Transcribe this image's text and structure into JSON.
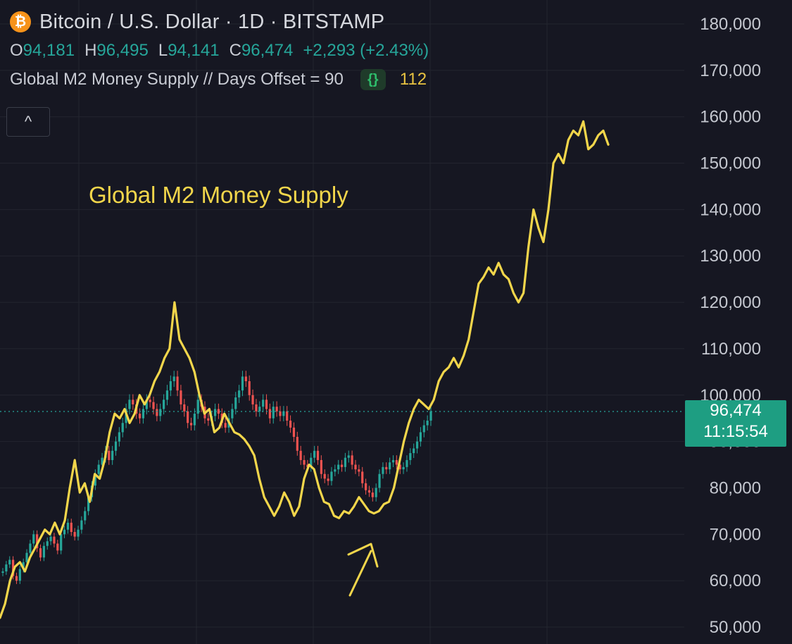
{
  "header": {
    "logo_symbol": "₿",
    "title": "Bitcoin / U.S. Dollar · 1D · BITSTAMP",
    "ohlc": {
      "o_label": "O",
      "o_value": "94,181",
      "h_label": "H",
      "h_value": "96,495",
      "l_label": "L",
      "l_value": "94,141",
      "c_label": "C",
      "c_value": "96,474",
      "change": "+2,293 (+2.43%)"
    },
    "indicator": {
      "name": "Global M2 Money Supply // Days Offset = 90",
      "icon": "braces-icon",
      "icon_glyph": "{}",
      "value": "112"
    },
    "collapse_glyph": "^"
  },
  "price_tag": {
    "price": "96,474",
    "countdown": "11:15:54"
  },
  "colors": {
    "background": "#161722",
    "grid": "#23252f",
    "bull": "#26a69a",
    "bear": "#ef5350",
    "m2_line": "#f2d64b",
    "price_tag": "#1e9e82"
  },
  "chart_data": {
    "type": "line",
    "y_axis": {
      "ticks": [
        "180,000",
        "170,000",
        "160,000",
        "150,000",
        "140,000",
        "130,000",
        "120,000",
        "110,000",
        "100,000",
        "90,000",
        "80,000",
        "70,000",
        "60,000",
        "50,000"
      ],
      "range": [
        48000,
        183000
      ],
      "side": "right"
    },
    "grid": true,
    "current_price": 96474,
    "annotation": "Global M2 Money Supply",
    "series": [
      {
        "kind": "candlestick",
        "note": "BTC/USD daily closes (approx.)",
        "values": [
          62000,
          63500,
          64500,
          61000,
          60000,
          62500,
          64000,
          66000,
          68000,
          70000,
          67000,
          65000,
          67500,
          68500,
          69500,
          68000,
          66500,
          70000,
          71000,
          72500,
          70500,
          69500,
          71000,
          73000,
          75000,
          78000,
          80500,
          83000,
          85000,
          86500,
          88000,
          86000,
          88000,
          90000,
          92000,
          94000,
          97000,
          99000,
          98000,
          96000,
          95000,
          97000,
          99000,
          98500,
          97000,
          95500,
          97000,
          99000,
          101000,
          103000,
          104000,
          101000,
          98000,
          96500,
          94000,
          93500,
          96000,
          99000,
          97500,
          95000,
          94500,
          95500,
          97000,
          96000,
          94000,
          93000,
          95000,
          97000,
          99500,
          101000,
          104000,
          103000,
          100000,
          98000,
          96500,
          97500,
          99000,
          97000,
          95000,
          97500,
          96500,
          95500,
          96500,
          94500,
          93000,
          91000,
          88000,
          86000,
          85000,
          84500,
          86500,
          88000,
          86000,
          83000,
          82000,
          81500,
          83500,
          84000,
          85000,
          84500,
          86500,
          87000,
          85000,
          84000,
          83500,
          81000,
          79500,
          79000,
          78000,
          80000,
          83000,
          84500,
          84000,
          85500,
          86000,
          85000,
          84000,
          84500,
          86000,
          87500,
          88500,
          90000,
          92000,
          93500,
          94500,
          96500
        ]
      },
      {
        "kind": "line",
        "name": "Global M2 Money Supply",
        "note": "M2 overlay in price-scale units (approx.)",
        "values": [
          52000,
          55000,
          60000,
          63000,
          64000,
          62000,
          65000,
          67000,
          69000,
          71000,
          70000,
          72500,
          70000,
          73000,
          80000,
          86000,
          79000,
          81000,
          77000,
          83000,
          82000,
          86000,
          92000,
          96000,
          95000,
          97000,
          94000,
          96000,
          100000,
          98000,
          100000,
          103000,
          105000,
          108000,
          110000,
          120000,
          112000,
          110000,
          108000,
          105000,
          100000,
          96000,
          97000,
          92000,
          93000,
          96000,
          94000,
          92000,
          91500,
          90500,
          89000,
          87000,
          82000,
          78000,
          76000,
          74000,
          76000,
          79000,
          77000,
          74000,
          76000,
          82000,
          85000,
          84000,
          80000,
          77000,
          76500,
          74000,
          73500,
          75000,
          74500,
          76000,
          78000,
          76500,
          75000,
          74500,
          75000,
          76500,
          77000,
          80000,
          85000,
          90000,
          94000,
          97000,
          99000,
          98000,
          97000,
          99000,
          103000,
          105000,
          106000,
          108000,
          106000,
          108500,
          112000,
          118000,
          124000,
          125500,
          127500,
          126000,
          128500,
          126000,
          125000,
          122000,
          120000,
          122000,
          132000,
          140000,
          136000,
          133000,
          140000,
          150000,
          152000,
          150000,
          155000,
          157000,
          156000,
          159000,
          153000,
          154000,
          156000,
          157000,
          154000
        ]
      }
    ]
  }
}
